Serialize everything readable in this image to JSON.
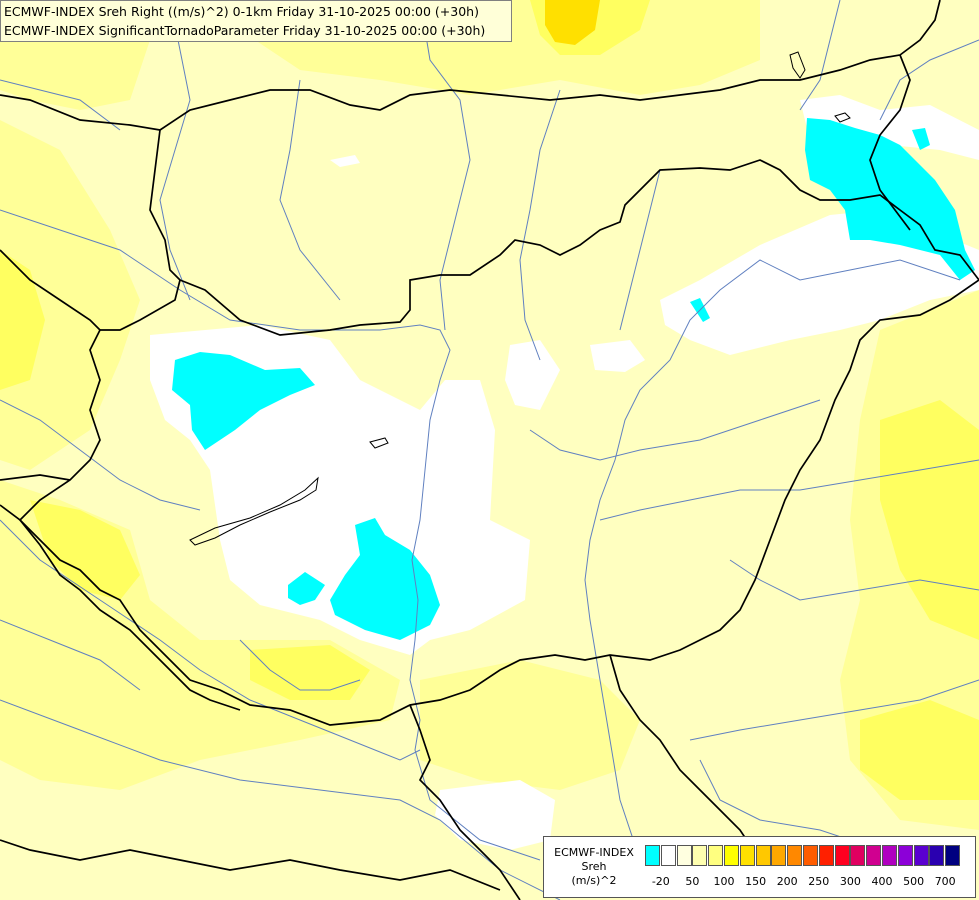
{
  "title_lines": [
    "ECMWF-INDEX Sreh Right ((m/s)^2) 0-1km Friday 31-10-2025 00:00 (+30h)",
    "ECMWF-INDEX SignificantTornadoParameter Friday 31-10-2025 00:00 (+30h)"
  ],
  "legend": {
    "lines": [
      "ECMWF-INDEX",
      "Sreh",
      "(m/s)^2"
    ],
    "colors": [
      "#00ffff",
      "#ffffff",
      "#ffffe0",
      "#ffffb0",
      "#ffff80",
      "#ffff00",
      "#ffe000",
      "#ffc800",
      "#ffa800",
      "#ff8800",
      "#ff5c00",
      "#ff2000",
      "#ff0020",
      "#e00060",
      "#d00090",
      "#b000c0",
      "#8c00d8",
      "#5a00d0",
      "#2a00b0",
      "#000080"
    ],
    "tick_labels": [
      "-20",
      "50",
      "100",
      "150",
      "200",
      "250",
      "300",
      "400",
      "500",
      "700"
    ]
  },
  "colors": {
    "background": "#ffffc0",
    "pale_yellow": "#ffff98",
    "yellow": "#ffff60",
    "strong_yellow": "#ffff00",
    "white": "#ffffff",
    "cyan": "#00ffff",
    "river": "#6080c0",
    "border": "#000000"
  }
}
